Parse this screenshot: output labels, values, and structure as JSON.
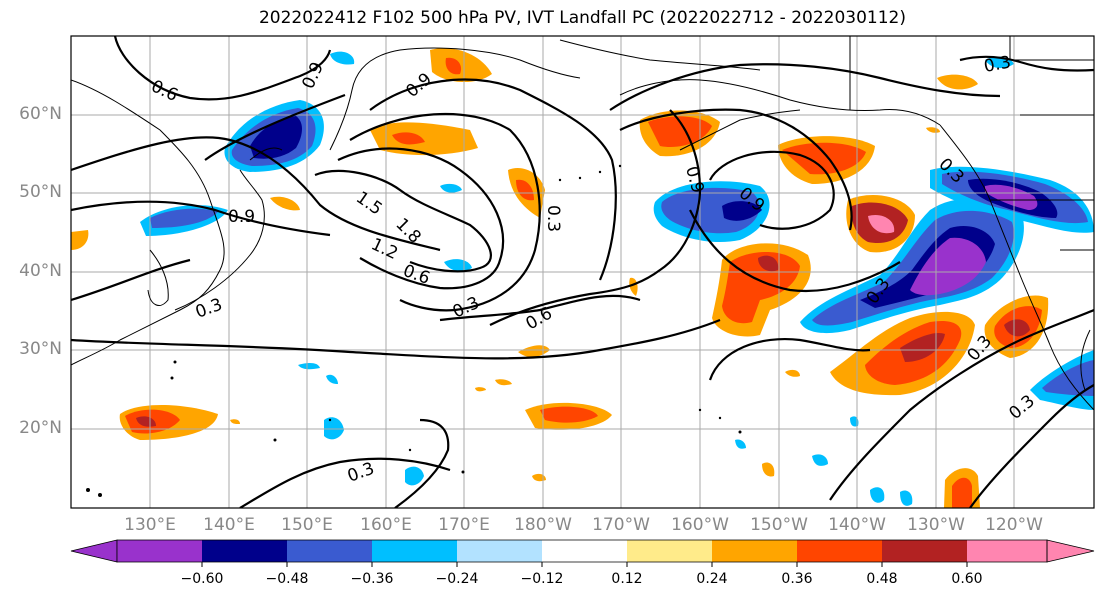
{
  "title": "2022022412 F102 500 hPa PV, IVT Landfall PC (2022022712 - 2022030112)",
  "lat_labels": [
    "60°N",
    "50°N",
    "40°N",
    "30°N",
    "20°N"
  ],
  "lon_labels": [
    "130°E",
    "140°E",
    "150°E",
    "160°E",
    "170°E",
    "180°W",
    "170°W",
    "160°W",
    "150°W",
    "140°W",
    "130°W",
    "120°W"
  ],
  "contour_labels": [
    "0.6",
    "0.9",
    "0.9",
    "0.9",
    "1.5",
    "1.8",
    "1.2",
    "0.6",
    "0.3",
    "0.3",
    "0.6",
    "0.9",
    "0.9",
    "0.3",
    "0.3",
    "0.3",
    "0.3",
    "0.3",
    "0.3",
    "0.3"
  ],
  "colorbar": {
    "colors": [
      "#9932CC",
      "#00008B",
      "#3A5BD0",
      "#00BFFF",
      "#B2E2FF",
      "#FFFFFF",
      "#FFEB8A",
      "#FFA500",
      "#FF4500",
      "#B22222",
      "#FF85B0"
    ],
    "tick_labels": [
      "−0.60",
      "−0.48",
      "−0.36",
      "−0.24",
      "−0.12",
      "0.12",
      "0.24",
      "0.36",
      "0.48",
      "0.60"
    ]
  }
}
